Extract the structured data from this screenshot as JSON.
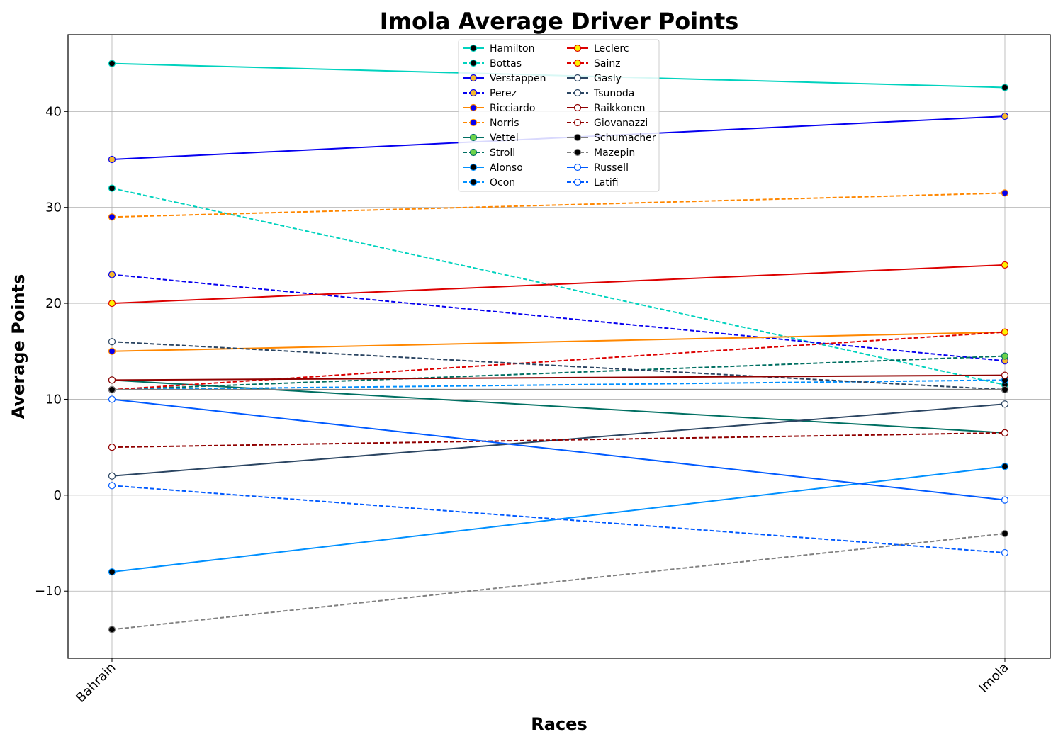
{
  "chart_data": {
    "type": "line",
    "title": "Imola Average Driver Points",
    "xlabel": "Races",
    "ylabel": "Average Points",
    "categories": [
      "Bahrain",
      "Imola"
    ],
    "ylim": [
      -17,
      48
    ],
    "yticks": [
      -10,
      0,
      10,
      20,
      30,
      40
    ],
    "grid": true,
    "legend_position": "top-center",
    "legend_columns": 2,
    "series": [
      {
        "name": "Hamilton",
        "values": [
          45,
          42.5
        ],
        "color": "#00d2be",
        "dash": "solid",
        "marker_face": "#000000",
        "marker_edge": "#00d2be"
      },
      {
        "name": "Bottas",
        "values": [
          32,
          11.5
        ],
        "color": "#00d2be",
        "dash": "dashed",
        "marker_face": "#000000",
        "marker_edge": "#00d2be"
      },
      {
        "name": "Verstappen",
        "values": [
          35,
          39.5
        ],
        "color": "#0600ef",
        "dash": "solid",
        "marker_face": "#f5b82e",
        "marker_edge": "#0600ef"
      },
      {
        "name": "Perez",
        "values": [
          23,
          14
        ],
        "color": "#0600ef",
        "dash": "dashed",
        "marker_face": "#f5b82e",
        "marker_edge": "#0600ef"
      },
      {
        "name": "Ricciardo",
        "values": [
          15,
          17
        ],
        "color": "#ff8700",
        "dash": "solid",
        "marker_face": "#0600ef",
        "marker_edge": "#ff8700"
      },
      {
        "name": "Norris",
        "values": [
          29,
          31.5
        ],
        "color": "#ff8700",
        "dash": "dashed",
        "marker_face": "#0600ef",
        "marker_edge": "#ff8700"
      },
      {
        "name": "Vettel",
        "values": [
          12,
          6.5
        ],
        "color": "#006f62",
        "dash": "solid",
        "marker_face": "#6cd34a",
        "marker_edge": "#006f62"
      },
      {
        "name": "Stroll",
        "values": [
          11,
          14.5
        ],
        "color": "#006f62",
        "dash": "dashed",
        "marker_face": "#6cd34a",
        "marker_edge": "#006f62"
      },
      {
        "name": "Alonso",
        "values": [
          -8,
          3
        ],
        "color": "#0090ff",
        "dash": "solid",
        "marker_face": "#000000",
        "marker_edge": "#0090ff"
      },
      {
        "name": "Ocon",
        "values": [
          11,
          12
        ],
        "color": "#0090ff",
        "dash": "dashed",
        "marker_face": "#000000",
        "marker_edge": "#0090ff"
      },
      {
        "name": "Leclerc",
        "values": [
          20,
          24
        ],
        "color": "#dc0000",
        "dash": "solid",
        "marker_face": "#fff200",
        "marker_edge": "#dc0000"
      },
      {
        "name": "Sainz",
        "values": [
          11,
          17
        ],
        "color": "#dc0000",
        "dash": "dashed",
        "marker_face": "#fff200",
        "marker_edge": "#dc0000"
      },
      {
        "name": "Gasly",
        "values": [
          2,
          9.5
        ],
        "color": "#2b4562",
        "dash": "solid",
        "marker_face": "#ffffff",
        "marker_edge": "#2b4562"
      },
      {
        "name": "Tsunoda",
        "values": [
          16,
          11
        ],
        "color": "#2b4562",
        "dash": "dashed",
        "marker_face": "#ffffff",
        "marker_edge": "#2b4562"
      },
      {
        "name": "Raikkonen",
        "values": [
          12,
          12.5
        ],
        "color": "#900000",
        "dash": "solid",
        "marker_face": "#ffffff",
        "marker_edge": "#900000"
      },
      {
        "name": "Giovanazzi",
        "values": [
          5,
          6.5
        ],
        "color": "#900000",
        "dash": "dashed",
        "marker_face": "#ffffff",
        "marker_edge": "#900000"
      },
      {
        "name": "Schumacher",
        "values": [
          11,
          11
        ],
        "color": "#808080",
        "dash": "solid",
        "marker_face": "#000000",
        "marker_edge": "#808080"
      },
      {
        "name": "Mazepin",
        "values": [
          -14,
          -4
        ],
        "color": "#808080",
        "dash": "dashed",
        "marker_face": "#000000",
        "marker_edge": "#808080"
      },
      {
        "name": "Russell",
        "values": [
          10,
          -0.5
        ],
        "color": "#005aff",
        "dash": "solid",
        "marker_face": "#ffffff",
        "marker_edge": "#005aff"
      },
      {
        "name": "Latifi",
        "values": [
          1,
          -6
        ],
        "color": "#005aff",
        "dash": "dashed",
        "marker_face": "#ffffff",
        "marker_edge": "#005aff"
      }
    ]
  }
}
